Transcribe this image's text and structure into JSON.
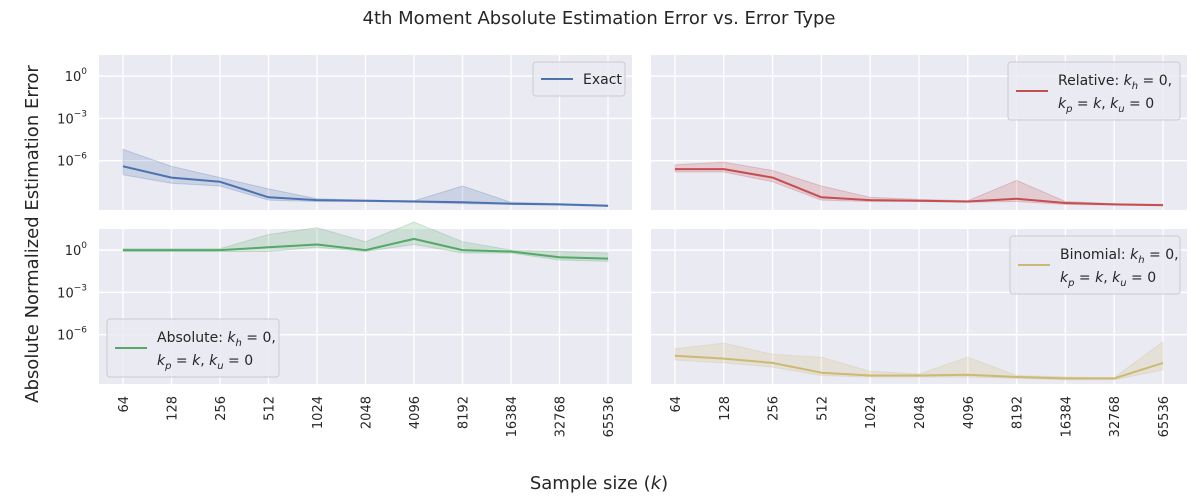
{
  "chart_data": {
    "type": "line",
    "title": "4th Moment Absolute Estimation Error vs. Error Type",
    "xlabel_text": "Sample size (",
    "xlabel_var": "k",
    "xlabel_close": ")",
    "ylabel": "Absolute Normalized Estimation Error",
    "categories": [
      "64",
      "128",
      "256",
      "512",
      "1024",
      "2048",
      "4096",
      "8192",
      "16384",
      "32768",
      "65536"
    ],
    "y_scale": "log",
    "ylim_exponent": [
      -9.5,
      1.5
    ],
    "y_ticks": [
      {
        "base": "10",
        "exp": "0",
        "value": 0
      },
      {
        "base": "10",
        "exp": "−3",
        "value": -3
      },
      {
        "base": "10",
        "exp": "−6",
        "value": -6
      }
    ],
    "grid": true,
    "panels": [
      {
        "series": {
          "name": "Exact",
          "color": "#4c72b0",
          "values_log10": [
            -6.4,
            -7.2,
            -7.5,
            -8.6,
            -8.8,
            -8.85,
            -8.9,
            -8.95,
            -9.05,
            -9.1,
            -9.2
          ],
          "upper_log10": [
            -5.2,
            -6.4,
            -7.2,
            -8.0,
            -8.7,
            -8.8,
            -8.85,
            -7.8,
            -8.95,
            -9.05,
            -9.15
          ],
          "lower_log10": [
            -7.0,
            -7.6,
            -7.8,
            -8.8,
            -8.9,
            -8.9,
            -8.95,
            -9.05,
            -9.1,
            -9.15,
            -9.25
          ]
        },
        "legend": {
          "lines": [
            "Exact"
          ],
          "pos": "top-right"
        }
      },
      {
        "series": {
          "name": "Relative: k_h = 0, k_p = k, k_u = 0",
          "color": "#c44e52",
          "values_log10": [
            -6.6,
            -6.6,
            -7.2,
            -8.6,
            -8.8,
            -8.85,
            -8.9,
            -8.7,
            -9.0,
            -9.1,
            -9.15
          ],
          "upper_log10": [
            -6.3,
            -6.1,
            -6.7,
            -7.8,
            -8.6,
            -8.75,
            -8.85,
            -7.4,
            -8.9,
            -9.05,
            -9.1
          ],
          "lower_log10": [
            -6.8,
            -6.8,
            -7.5,
            -8.8,
            -8.9,
            -8.9,
            -8.95,
            -8.9,
            -9.1,
            -9.15,
            -9.2
          ]
        },
        "legend": {
          "lines": [
            [
              "Relative: ",
              "k",
              "h",
              " = 0,"
            ],
            [
              "",
              "k",
              "p",
              " = ",
              "k",
              "",
              ", ",
              "k",
              "u",
              " = 0"
            ]
          ],
          "pos": "top-right"
        }
      },
      {
        "series": {
          "name": "Absolute: k_h = 0, k_p = k, k_u = 0",
          "color": "#55a868",
          "values_log10": [
            0,
            0,
            0,
            0.2,
            0.4,
            0,
            0.8,
            0,
            -0.1,
            -0.5,
            -0.6
          ],
          "upper_log10": [
            0.1,
            0.1,
            0.1,
            1.1,
            1.6,
            0.6,
            2.0,
            0.6,
            0,
            -0.1,
            -0.2
          ],
          "lower_log10": [
            -0.1,
            -0.1,
            -0.1,
            -0.1,
            0.2,
            -0.1,
            0.4,
            -0.2,
            -0.2,
            -0.7,
            -0.8
          ]
        },
        "legend": {
          "lines": [
            [
              "Absolute: ",
              "k",
              "h",
              " = 0,"
            ],
            [
              "",
              "k",
              "p",
              " = ",
              "k",
              "",
              ", ",
              "k",
              "u",
              " = 0"
            ]
          ],
          "pos": "lower-left"
        }
      },
      {
        "series": {
          "name": "Binomial: k_h = 0, k_p = k, k_u = 0",
          "color": "#ccb974",
          "values_log10": [
            -7.5,
            -7.7,
            -8.0,
            -8.7,
            -8.9,
            -8.9,
            -8.85,
            -9.0,
            -9.1,
            -9.1,
            -8.0
          ],
          "upper_log10": [
            -7.0,
            -6.6,
            -7.4,
            -7.6,
            -8.6,
            -8.8,
            -7.6,
            -8.9,
            -9.0,
            -9.05,
            -6.5
          ],
          "lower_log10": [
            -7.8,
            -8.0,
            -8.3,
            -8.9,
            -9.0,
            -9.0,
            -9.0,
            -9.1,
            -9.2,
            -9.2,
            -8.5
          ]
        },
        "legend": {
          "lines": [
            [
              "Binomial: ",
              "k",
              "h",
              " = 0,"
            ],
            [
              "",
              "k",
              "p",
              " = ",
              "k",
              "",
              ", ",
              "k",
              "u",
              " = 0"
            ]
          ],
          "pos": "top-right"
        }
      }
    ]
  }
}
